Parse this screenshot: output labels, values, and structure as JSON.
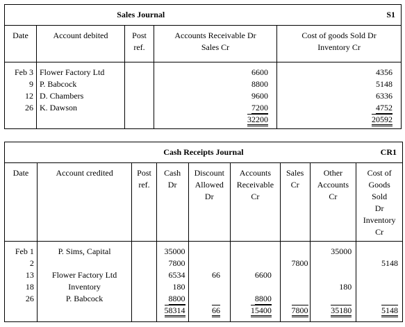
{
  "sales_journal": {
    "title": "Sales Journal",
    "ref": "S1",
    "headers": {
      "date": "Date",
      "account": "Account debited",
      "post_ref": [
        "Post",
        "ref."
      ],
      "ar_sales": [
        "Accounts Receivable Dr",
        "Sales Cr"
      ],
      "cogs_inv": [
        "Cost of goods Sold Dr",
        "Inventory Cr"
      ]
    },
    "rows": [
      {
        "date": "Feb 3",
        "account": "Flower Factory Ltd",
        "ar": "6600",
        "cogs": "4356"
      },
      {
        "date": "9",
        "account": "P. Babcock",
        "ar": "8800",
        "cogs": "5148"
      },
      {
        "date": "12",
        "account": "D. Chambers",
        "ar": "9600",
        "cogs": "6336"
      },
      {
        "date": "26",
        "account": "K. Dawson",
        "ar": "7200",
        "cogs": "4752"
      }
    ],
    "totals": {
      "ar": "32200",
      "cogs": "20592"
    }
  },
  "cash_receipts_journal": {
    "title": "Cash Receipts Journal",
    "ref": "CR1",
    "headers": {
      "date": "Date",
      "account": "Account credited",
      "post_ref": [
        "Post",
        "ref."
      ],
      "cash": [
        "Cash",
        "Dr"
      ],
      "discount": [
        "Discount",
        "Allowed",
        "Dr"
      ],
      "ar": [
        "Accounts",
        "Receivable",
        "Cr"
      ],
      "sales": [
        "Sales",
        "Cr"
      ],
      "other": [
        "Other",
        "Accounts",
        "Cr"
      ],
      "cogs": [
        "Cost of",
        "Goods",
        "Sold",
        "Dr",
        "Inventory",
        "Cr"
      ]
    },
    "rows": [
      {
        "date": "Feb 1",
        "account": "P. Sims, Capital",
        "cash": "35000",
        "discount": "",
        "ar": "",
        "sales": "",
        "other": "35000",
        "cogs": ""
      },
      {
        "date": "2",
        "account": "",
        "cash": "7800",
        "discount": "",
        "ar": "",
        "sales": "7800",
        "other": "",
        "cogs": "5148"
      },
      {
        "date": "13",
        "account": "Flower Factory Ltd",
        "cash": "6534",
        "discount": "66",
        "ar": "6600",
        "sales": "",
        "other": "",
        "cogs": ""
      },
      {
        "date": "18",
        "account": "Inventory",
        "cash": "180",
        "discount": "",
        "ar": "",
        "sales": "",
        "other": "180",
        "cogs": ""
      },
      {
        "date": "26",
        "account": "P. Babcock",
        "cash": "8800",
        "discount": "",
        "ar": "8800",
        "sales": "",
        "other": "",
        "cogs": ""
      }
    ],
    "totals": {
      "cash": "58314",
      "discount": "66",
      "ar": "15400",
      "sales": "7800",
      "other": "35180",
      "cogs": "5148"
    }
  }
}
